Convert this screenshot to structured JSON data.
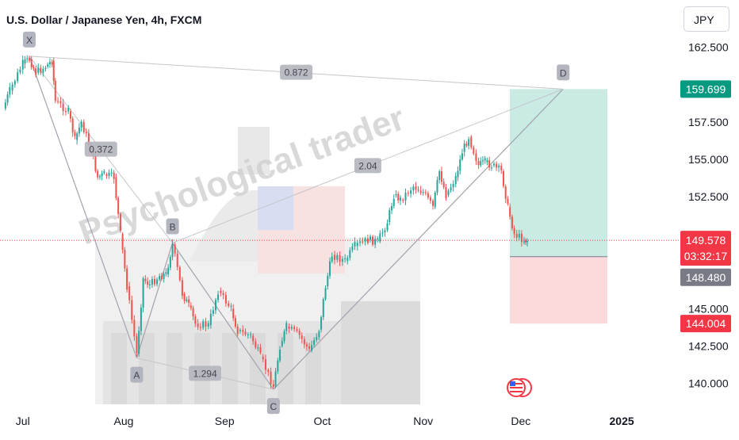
{
  "header": {
    "title": "U.S. Dollar / Japanese Yen, 4h, FXCM",
    "currency": "JPY"
  },
  "watermark": {
    "text": "Psychological trader"
  },
  "chart_data": {
    "type": "candlestick",
    "symbol": "USDJPY",
    "timeframe": "4h",
    "source": "FXCM",
    "ylim": [
      138.6,
      164.6
    ],
    "y_ticks": [
      "162.500",
      "157.500",
      "155.000",
      "152.500",
      "145.000",
      "142.500",
      "140.000"
    ],
    "x_ticks": [
      "Jul",
      "Aug",
      "Sep",
      "Oct",
      "Nov",
      "Dec",
      "2025"
    ],
    "price_series": [
      {
        "t": "Jun 25",
        "v": 158.4
      },
      {
        "t": "Jun 27",
        "v": 159.6
      },
      {
        "t": "Jul 1",
        "v": 161.4
      },
      {
        "t": "Jul 3",
        "v": 161.7
      },
      {
        "t": "Jul 5",
        "v": 160.8
      },
      {
        "t": "Jul 8",
        "v": 161.2
      },
      {
        "t": "Jul 10",
        "v": 161.6
      },
      {
        "t": "Jul 11",
        "v": 158.9
      },
      {
        "t": "Jul 15",
        "v": 158.2
      },
      {
        "t": "Jul 17",
        "v": 156.3
      },
      {
        "t": "Jul 19",
        "v": 157.5
      },
      {
        "t": "Jul 22",
        "v": 155.6
      },
      {
        "t": "Jul 24",
        "v": 153.8
      },
      {
        "t": "Jul 26",
        "v": 154.0
      },
      {
        "t": "Jul 29",
        "v": 153.8
      },
      {
        "t": "Jul 31",
        "v": 150.0
      },
      {
        "t": "Aug 2",
        "v": 146.5
      },
      {
        "t": "Aug 5",
        "v": 142.0
      },
      {
        "t": "Aug 7",
        "v": 147.0
      },
      {
        "t": "Aug 9",
        "v": 146.6
      },
      {
        "t": "Aug 12",
        "v": 147.2
      },
      {
        "t": "Aug 14",
        "v": 147.3
      },
      {
        "t": "Aug 16",
        "v": 149.3
      },
      {
        "t": "Aug 19",
        "v": 146.0
      },
      {
        "t": "Aug 21",
        "v": 145.2
      },
      {
        "t": "Aug 23",
        "v": 144.0
      },
      {
        "t": "Aug 27",
        "v": 143.9
      },
      {
        "t": "Aug 30",
        "v": 146.2
      },
      {
        "t": "Sep 3",
        "v": 145.0
      },
      {
        "t": "Sep 5",
        "v": 143.5
      },
      {
        "t": "Sep 9",
        "v": 143.2
      },
      {
        "t": "Sep 12",
        "v": 141.8
      },
      {
        "t": "Sep 16",
        "v": 139.8
      },
      {
        "t": "Sep 18",
        "v": 142.5
      },
      {
        "t": "Sep 20",
        "v": 143.8
      },
      {
        "t": "Sep 24",
        "v": 143.2
      },
      {
        "t": "Sep 27",
        "v": 142.2
      },
      {
        "t": "Sep 30",
        "v": 143.6
      },
      {
        "t": "Oct 2",
        "v": 146.5
      },
      {
        "t": "Oct 4",
        "v": 148.6
      },
      {
        "t": "Oct 8",
        "v": 148.2
      },
      {
        "t": "Oct 11",
        "v": 149.2
      },
      {
        "t": "Oct 15",
        "v": 149.6
      },
      {
        "t": "Oct 18",
        "v": 149.5
      },
      {
        "t": "Oct 21",
        "v": 150.8
      },
      {
        "t": "Oct 23",
        "v": 152.6
      },
      {
        "t": "Oct 25",
        "v": 152.3
      },
      {
        "t": "Oct 29",
        "v": 153.2
      },
      {
        "t": "Nov 1",
        "v": 152.8
      },
      {
        "t": "Nov 4",
        "v": 151.8
      },
      {
        "t": "Nov 6",
        "v": 154.2
      },
      {
        "t": "Nov 8",
        "v": 152.6
      },
      {
        "t": "Nov 11",
        "v": 153.8
      },
      {
        "t": "Nov 13",
        "v": 155.5
      },
      {
        "t": "Nov 15",
        "v": 156.5
      },
      {
        "t": "Nov 18",
        "v": 154.6
      },
      {
        "t": "Nov 20",
        "v": 154.8
      },
      {
        "t": "Nov 22",
        "v": 154.6
      },
      {
        "t": "Nov 25",
        "v": 154.2
      },
      {
        "t": "Nov 27",
        "v": 151.8
      },
      {
        "t": "Nov 29",
        "v": 150.0
      },
      {
        "t": "Dec 2",
        "v": 149.6
      },
      {
        "t": "Dec 3",
        "v": 149.578
      }
    ],
    "pattern": {
      "points": [
        {
          "label": "X",
          "t": "Jul 3",
          "v": 161.9
        },
        {
          "label": "A",
          "t": "Aug 5",
          "v": 141.7
        },
        {
          "label": "B",
          "t": "Aug 16",
          "v": 149.4
        },
        {
          "label": "C",
          "t": "Sep 16",
          "v": 139.6
        },
        {
          "label": "D",
          "t": "Dec 14",
          "v": 159.699
        }
      ],
      "ratios": [
        {
          "text": "0.372",
          "pos": "upper-left"
        },
        {
          "text": "1.294",
          "pos": "lower"
        },
        {
          "text": "2.04",
          "pos": "middle"
        },
        {
          "text": "0.872",
          "pos": "top"
        }
      ]
    },
    "position": {
      "target": "159.699",
      "entry": "148.480",
      "stop": "144.004"
    },
    "current_price": {
      "value": "149.578",
      "countdown": "03:32:17"
    },
    "colors": {
      "up": "#26a69a",
      "down": "#ef5350",
      "target": "#089981",
      "stop": "#f23645",
      "entry": "#787b86",
      "profit_zone": "#bfe8df",
      "loss_zone": "#fbd6d8"
    }
  }
}
